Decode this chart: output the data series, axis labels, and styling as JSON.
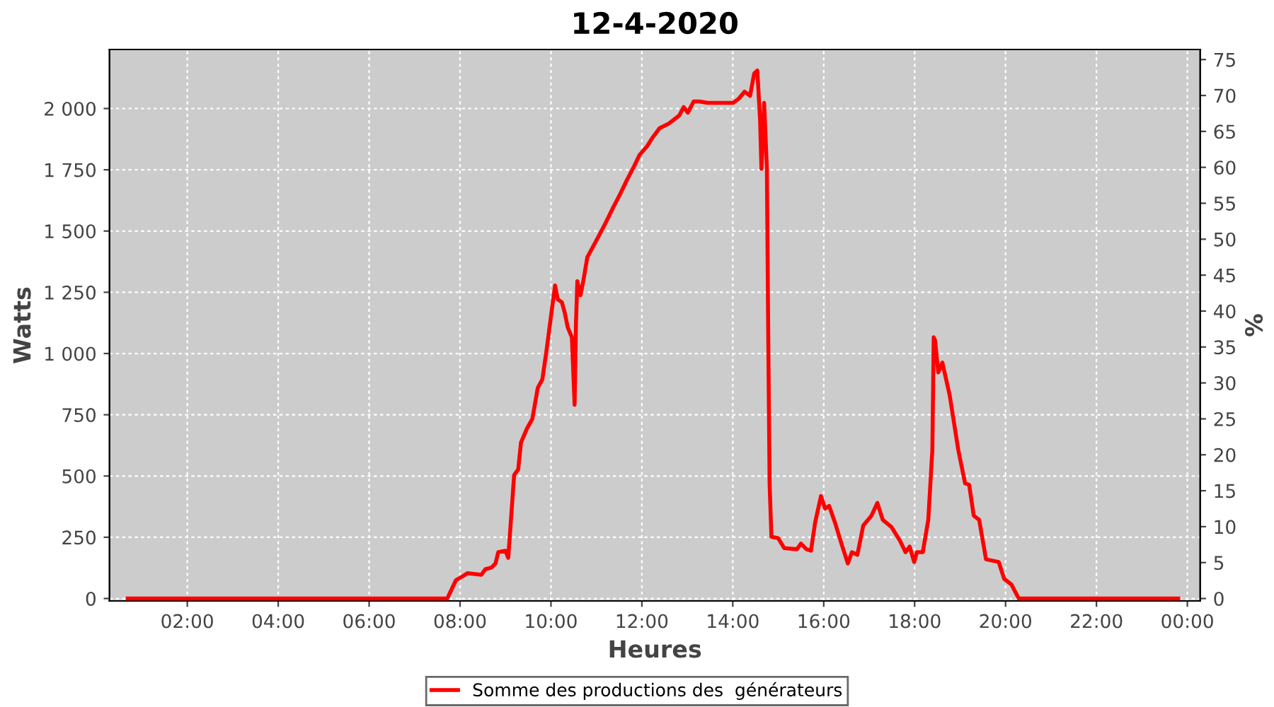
{
  "chart_data": {
    "type": "line",
    "title": "12-4-2020",
    "xlabel": "Heures",
    "ylabel": "Watts",
    "y2label": "%",
    "x": [
      0.69,
      7.72,
      7.91,
      8.07,
      8.16,
      8.47,
      8.56,
      8.69,
      8.78,
      8.84,
      9.0,
      9.06,
      9.12,
      9.19,
      9.28,
      9.34,
      9.47,
      9.59,
      9.71,
      9.81,
      9.9,
      10.0,
      10.09,
      10.15,
      10.24,
      10.3,
      10.37,
      10.46,
      10.52,
      10.55,
      10.58,
      10.65,
      10.71,
      10.8,
      10.93,
      11.05,
      11.21,
      11.36,
      11.52,
      11.67,
      11.83,
      11.95,
      12.11,
      12.23,
      12.39,
      12.58,
      12.7,
      12.82,
      12.92,
      13.01,
      13.14,
      13.26,
      13.45,
      13.76,
      14.01,
      14.13,
      14.26,
      14.38,
      14.47,
      14.54,
      14.6,
      14.63,
      14.69,
      14.75,
      14.78,
      14.81,
      14.85,
      15.0,
      15.13,
      15.41,
      15.5,
      15.62,
      15.72,
      15.81,
      15.94,
      16.03,
      16.12,
      16.25,
      16.4,
      16.53,
      16.62,
      16.74,
      16.87,
      17.05,
      17.18,
      17.3,
      17.49,
      17.68,
      17.8,
      17.89,
      17.99,
      18.05,
      18.18,
      18.3,
      18.39,
      18.42,
      18.45,
      18.52,
      18.61,
      18.77,
      18.96,
      19.11,
      19.2,
      19.3,
      19.42,
      19.57,
      19.85,
      19.97,
      20.13,
      20.29,
      23.8
    ],
    "series": [
      {
        "name": "Somme des productions des  générateurs",
        "color": "#ff0000",
        "values": [
          0,
          0,
          75,
          92,
          103,
          97,
          120,
          126,
          143,
          189,
          195,
          166,
          321,
          504,
          527,
          636,
          693,
          733,
          860,
          894,
          1009,
          1152,
          1278,
          1221,
          1209,
          1169,
          1106,
          1066,
          791,
          1123,
          1295,
          1238,
          1295,
          1393,
          1438,
          1479,
          1536,
          1593,
          1650,
          1708,
          1765,
          1811,
          1845,
          1880,
          1920,
          1937,
          1954,
          1971,
          2006,
          1983,
          2029,
          2029,
          2023,
          2023,
          2023,
          2040,
          2069,
          2052,
          2143,
          2155,
          1954,
          1754,
          2023,
          1754,
          1066,
          464,
          252,
          246,
          206,
          201,
          224,
          201,
          195,
          309,
          418,
          367,
          378,
          309,
          218,
          143,
          189,
          178,
          298,
          338,
          390,
          321,
          292,
          235,
          189,
          212,
          149,
          189,
          189,
          321,
          607,
          1066,
          1054,
          923,
          963,
          831,
          607,
          470,
          464,
          338,
          321,
          160,
          149,
          80,
          57,
          0,
          0
        ]
      }
    ],
    "xlim": [
      0.29,
      24.28
    ],
    "xticks": [
      {
        "value": 2,
        "label": "02:00"
      },
      {
        "value": 4,
        "label": "04:00"
      },
      {
        "value": 6,
        "label": "06:00"
      },
      {
        "value": 8,
        "label": "08:00"
      },
      {
        "value": 10,
        "label": "10:00"
      },
      {
        "value": 12,
        "label": "12:00"
      },
      {
        "value": 14,
        "label": "14:00"
      },
      {
        "value": 16,
        "label": "16:00"
      },
      {
        "value": 18,
        "label": "18:00"
      },
      {
        "value": 20,
        "label": "20:00"
      },
      {
        "value": 22,
        "label": "22:00"
      },
      {
        "value": 24,
        "label": "00:00"
      }
    ],
    "ylim": [
      -10,
      2241
    ],
    "yticks": [
      0,
      250,
      500,
      750,
      {
        "value": 1000,
        "label": "1 000"
      },
      {
        "value": 1250,
        "label": "1 250"
      },
      {
        "value": 1500,
        "label": "1 500"
      },
      {
        "value": 1750,
        "label": "1 750"
      },
      {
        "value": 2000,
        "label": "2 000"
      }
    ],
    "y2lim": [
      -0.34,
      76.4
    ],
    "y2ticks": [
      0,
      5,
      10,
      15,
      20,
      25,
      30,
      35,
      40,
      45,
      50,
      55,
      60,
      65,
      70,
      75
    ],
    "grid": true,
    "legend": "bottom",
    "marker": "none",
    "line_style": "solid"
  }
}
